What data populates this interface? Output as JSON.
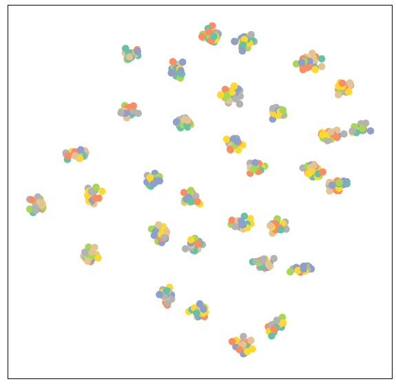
{
  "chart_data": {
    "type": "scatter",
    "title": "",
    "xlabel": "",
    "ylabel": "",
    "xlim": [
      0,
      100
    ],
    "ylim": [
      0,
      100
    ],
    "grid": false,
    "axes_ticks": false,
    "legend": "none",
    "palette": [
      "#66c2a5",
      "#fc8d62",
      "#8da0cb",
      "#a6d854",
      "#ffd92f",
      "#e5c494",
      "#b3b3b3"
    ],
    "clusters": [
      {
        "cx": 53.0,
        "cy": 92.0,
        "rx": 2.6,
        "ry": 2.4,
        "n": 34
      },
      {
        "cx": 61.8,
        "cy": 90.0,
        "rx": 2.6,
        "ry": 2.0,
        "n": 26
      },
      {
        "cx": 31.8,
        "cy": 87.0,
        "rx": 2.2,
        "ry": 1.8,
        "n": 22
      },
      {
        "cx": 43.8,
        "cy": 83.0,
        "rx": 1.8,
        "ry": 2.6,
        "n": 22
      },
      {
        "cx": 78.4,
        "cy": 85.0,
        "rx": 3.0,
        "ry": 2.0,
        "n": 32
      },
      {
        "cx": 87.4,
        "cy": 78.0,
        "rx": 2.4,
        "ry": 2.6,
        "n": 24
      },
      {
        "cx": 58.4,
        "cy": 76.0,
        "rx": 3.0,
        "ry": 2.2,
        "n": 30
      },
      {
        "cx": 70.4,
        "cy": 71.6,
        "rx": 2.2,
        "ry": 2.0,
        "n": 22
      },
      {
        "cx": 31.6,
        "cy": 71.6,
        "rx": 2.6,
        "ry": 1.6,
        "n": 24
      },
      {
        "cx": 45.8,
        "cy": 68.4,
        "rx": 2.6,
        "ry": 2.0,
        "n": 24
      },
      {
        "cx": 84.0,
        "cy": 65.2,
        "rx": 3.2,
        "ry": 1.8,
        "n": 26
      },
      {
        "cx": 91.8,
        "cy": 66.8,
        "rx": 2.4,
        "ry": 1.8,
        "n": 20
      },
      {
        "cx": 59.0,
        "cy": 63.0,
        "rx": 2.0,
        "ry": 2.4,
        "n": 22
      },
      {
        "cx": 17.8,
        "cy": 60.0,
        "rx": 3.4,
        "ry": 1.6,
        "n": 30
      },
      {
        "cx": 65.0,
        "cy": 57.0,
        "rx": 2.4,
        "ry": 1.8,
        "n": 22
      },
      {
        "cx": 79.4,
        "cy": 56.0,
        "rx": 2.8,
        "ry": 1.8,
        "n": 26
      },
      {
        "cx": 85.4,
        "cy": 51.8,
        "rx": 2.6,
        "ry": 2.0,
        "n": 24
      },
      {
        "cx": 37.8,
        "cy": 53.2,
        "rx": 2.2,
        "ry": 1.8,
        "n": 22
      },
      {
        "cx": 22.0,
        "cy": 49.0,
        "rx": 2.2,
        "ry": 2.6,
        "n": 22
      },
      {
        "cx": 47.8,
        "cy": 48.2,
        "rx": 2.2,
        "ry": 2.0,
        "n": 22
      },
      {
        "cx": 7.8,
        "cy": 46.4,
        "rx": 2.6,
        "ry": 2.8,
        "n": 26
      },
      {
        "cx": 61.2,
        "cy": 41.6,
        "rx": 2.8,
        "ry": 2.2,
        "n": 26
      },
      {
        "cx": 70.4,
        "cy": 40.6,
        "rx": 2.6,
        "ry": 2.0,
        "n": 24
      },
      {
        "cx": 39.8,
        "cy": 39.0,
        "rx": 2.4,
        "ry": 2.8,
        "n": 26
      },
      {
        "cx": 48.6,
        "cy": 35.8,
        "rx": 2.2,
        "ry": 2.6,
        "n": 24
      },
      {
        "cx": 21.4,
        "cy": 33.0,
        "rx": 2.0,
        "ry": 2.2,
        "n": 22
      },
      {
        "cx": 66.4,
        "cy": 30.8,
        "rx": 2.6,
        "ry": 1.6,
        "n": 22
      },
      {
        "cx": 76.4,
        "cy": 29.2,
        "rx": 2.8,
        "ry": 1.6,
        "n": 22
      },
      {
        "cx": 41.6,
        "cy": 22.0,
        "rx": 2.6,
        "ry": 2.2,
        "n": 26
      },
      {
        "cx": 49.4,
        "cy": 17.8,
        "rx": 2.6,
        "ry": 2.0,
        "n": 26
      },
      {
        "cx": 69.6,
        "cy": 14.0,
        "rx": 2.2,
        "ry": 2.8,
        "n": 22
      },
      {
        "cx": 61.0,
        "cy": 8.6,
        "rx": 2.4,
        "ry": 2.4,
        "n": 24
      }
    ]
  }
}
